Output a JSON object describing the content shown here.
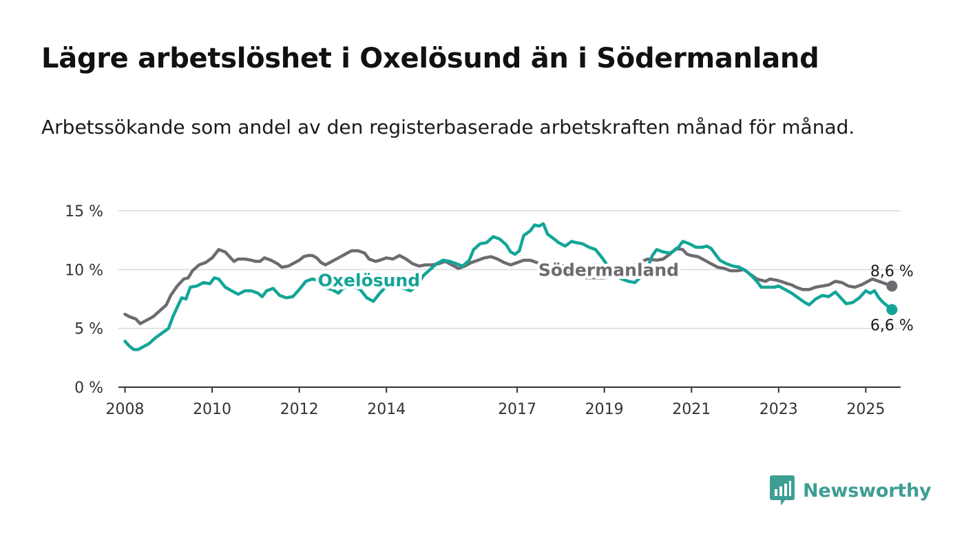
{
  "title": "Lägre arbetslöshet i Oxelösund än i Södermanland",
  "subtitle": "Arbetssökande som andel av den registerbaserade arbetskraften månad för månad.",
  "brand": {
    "name": "Newsworthy",
    "icon": "newsworthy-logo-icon",
    "color": "#3e9e94"
  },
  "chart_data": {
    "type": "line",
    "title": "",
    "xlabel": "",
    "ylabel": "",
    "xlim": [
      2007.85,
      2025.8
    ],
    "ylim": [
      0,
      15
    ],
    "grid": true,
    "x_ticks": [
      2008,
      2010,
      2012,
      2014,
      2017,
      2019,
      2021,
      2023,
      2025
    ],
    "x_tick_labels": [
      "2008",
      "2010",
      "2012",
      "2014",
      "2017",
      "2019",
      "2021",
      "2023",
      "2025"
    ],
    "y_ticks": [
      0,
      5,
      10,
      15
    ],
    "y_tick_labels": [
      "0 %",
      "5 %",
      "10 %",
      "15 %"
    ],
    "series": [
      {
        "name": "Södermanland",
        "color": "#6e6b70",
        "end_label": "8,6 %",
        "points": [
          [
            2008.0,
            6.2
          ],
          [
            2008.1,
            6.0
          ],
          [
            2008.25,
            5.8
          ],
          [
            2008.35,
            5.4
          ],
          [
            2008.5,
            5.7
          ],
          [
            2008.65,
            6.0
          ],
          [
            2008.8,
            6.5
          ],
          [
            2008.95,
            7.0
          ],
          [
            2009.05,
            7.8
          ],
          [
            2009.2,
            8.6
          ],
          [
            2009.35,
            9.2
          ],
          [
            2009.45,
            9.3
          ],
          [
            2009.55,
            9.9
          ],
          [
            2009.7,
            10.4
          ],
          [
            2009.85,
            10.6
          ],
          [
            2010.0,
            11.0
          ],
          [
            2010.15,
            11.7
          ],
          [
            2010.3,
            11.5
          ],
          [
            2010.4,
            11.1
          ],
          [
            2010.5,
            10.7
          ],
          [
            2010.6,
            10.9
          ],
          [
            2010.75,
            10.9
          ],
          [
            2010.9,
            10.8
          ],
          [
            2011.0,
            10.7
          ],
          [
            2011.1,
            10.7
          ],
          [
            2011.2,
            11.0
          ],
          [
            2011.35,
            10.8
          ],
          [
            2011.5,
            10.5
          ],
          [
            2011.6,
            10.2
          ],
          [
            2011.75,
            10.3
          ],
          [
            2011.9,
            10.6
          ],
          [
            2012.0,
            10.8
          ],
          [
            2012.1,
            11.1
          ],
          [
            2012.2,
            11.2
          ],
          [
            2012.3,
            11.2
          ],
          [
            2012.4,
            11.0
          ],
          [
            2012.5,
            10.6
          ],
          [
            2012.6,
            10.4
          ],
          [
            2012.75,
            10.7
          ],
          [
            2012.9,
            11.0
          ],
          [
            2013.0,
            11.2
          ],
          [
            2013.1,
            11.4
          ],
          [
            2013.2,
            11.6
          ],
          [
            2013.35,
            11.6
          ],
          [
            2013.5,
            11.4
          ],
          [
            2013.6,
            10.9
          ],
          [
            2013.75,
            10.7
          ],
          [
            2013.85,
            10.8
          ],
          [
            2014.0,
            11.0
          ],
          [
            2014.15,
            10.9
          ],
          [
            2014.3,
            11.2
          ],
          [
            2014.45,
            10.9
          ],
          [
            2014.6,
            10.5
          ],
          [
            2014.75,
            10.3
          ],
          [
            2014.9,
            10.4
          ],
          [
            2015.05,
            10.4
          ],
          [
            2015.2,
            10.5
          ],
          [
            2015.35,
            10.7
          ],
          [
            2015.5,
            10.4
          ],
          [
            2015.65,
            10.1
          ],
          [
            2015.8,
            10.3
          ],
          [
            2015.95,
            10.6
          ],
          [
            2016.1,
            10.8
          ],
          [
            2016.25,
            11.0
          ],
          [
            2016.4,
            11.1
          ],
          [
            2016.55,
            10.9
          ],
          [
            2016.7,
            10.6
          ],
          [
            2016.85,
            10.4
          ],
          [
            2017.0,
            10.6
          ],
          [
            2017.15,
            10.8
          ],
          [
            2017.3,
            10.8
          ],
          [
            2017.45,
            10.6
          ],
          [
            2017.6,
            10.3
          ],
          [
            2017.75,
            10.3
          ],
          [
            2017.9,
            10.4
          ],
          [
            2018.0,
            10.4
          ],
          [
            2018.1,
            10.3
          ],
          [
            2018.2,
            9.9
          ],
          [
            2018.4,
            9.6
          ],
          [
            2018.6,
            9.3
          ],
          [
            2018.8,
            9.3
          ],
          [
            2019.0,
            9.3
          ],
          [
            2019.2,
            9.4
          ],
          [
            2019.4,
            9.8
          ],
          [
            2019.6,
            10.1
          ],
          [
            2019.8,
            10.6
          ],
          [
            2020.0,
            10.9
          ],
          [
            2020.2,
            10.8
          ],
          [
            2020.35,
            10.9
          ],
          [
            2020.5,
            11.3
          ],
          [
            2020.65,
            11.8
          ],
          [
            2020.8,
            11.7
          ],
          [
            2020.9,
            11.3
          ],
          [
            2021.0,
            11.2
          ],
          [
            2021.15,
            11.1
          ],
          [
            2021.3,
            10.8
          ],
          [
            2021.45,
            10.5
          ],
          [
            2021.6,
            10.2
          ],
          [
            2021.75,
            10.1
          ],
          [
            2021.9,
            9.9
          ],
          [
            2022.05,
            9.9
          ],
          [
            2022.2,
            10.0
          ],
          [
            2022.35,
            9.6
          ],
          [
            2022.5,
            9.2
          ],
          [
            2022.7,
            9.0
          ],
          [
            2022.8,
            9.2
          ],
          [
            2022.95,
            9.1
          ],
          [
            2023.05,
            9.0
          ],
          [
            2023.2,
            8.8
          ],
          [
            2023.3,
            8.7
          ],
          [
            2023.4,
            8.5
          ],
          [
            2023.55,
            8.3
          ],
          [
            2023.7,
            8.3
          ],
          [
            2023.85,
            8.5
          ],
          [
            2024.0,
            8.6
          ],
          [
            2024.15,
            8.7
          ],
          [
            2024.3,
            9.0
          ],
          [
            2024.45,
            8.9
          ],
          [
            2024.6,
            8.6
          ],
          [
            2024.75,
            8.5
          ],
          [
            2024.9,
            8.7
          ],
          [
            2025.05,
            9.0
          ],
          [
            2025.15,
            9.2
          ],
          [
            2025.3,
            9.0
          ],
          [
            2025.45,
            8.8
          ],
          [
            2025.6,
            8.6
          ]
        ]
      },
      {
        "name": "Oxelösund",
        "color": "#12a597",
        "end_label": "6,6 %",
        "points": [
          [
            2008.0,
            3.9
          ],
          [
            2008.1,
            3.5
          ],
          [
            2008.2,
            3.2
          ],
          [
            2008.3,
            3.2
          ],
          [
            2008.4,
            3.4
          ],
          [
            2008.55,
            3.7
          ],
          [
            2008.7,
            4.2
          ],
          [
            2008.85,
            4.6
          ],
          [
            2009.0,
            5.0
          ],
          [
            2009.1,
            6.0
          ],
          [
            2009.2,
            6.8
          ],
          [
            2009.3,
            7.6
          ],
          [
            2009.4,
            7.5
          ],
          [
            2009.5,
            8.5
          ],
          [
            2009.65,
            8.6
          ],
          [
            2009.8,
            8.9
          ],
          [
            2009.95,
            8.8
          ],
          [
            2010.05,
            9.3
          ],
          [
            2010.15,
            9.2
          ],
          [
            2010.3,
            8.5
          ],
          [
            2010.45,
            8.2
          ],
          [
            2010.6,
            7.9
          ],
          [
            2010.75,
            8.2
          ],
          [
            2010.9,
            8.2
          ],
          [
            2011.05,
            8.0
          ],
          [
            2011.15,
            7.7
          ],
          [
            2011.25,
            8.2
          ],
          [
            2011.4,
            8.4
          ],
          [
            2011.55,
            7.8
          ],
          [
            2011.7,
            7.6
          ],
          [
            2011.85,
            7.7
          ],
          [
            2012.0,
            8.3
          ],
          [
            2012.15,
            9.0
          ],
          [
            2012.3,
            9.2
          ],
          [
            2012.4,
            9.1
          ],
          [
            2012.5,
            8.6
          ],
          [
            2012.65,
            8.4
          ],
          [
            2012.75,
            8.3
          ],
          [
            2012.9,
            8.0
          ],
          [
            2013.0,
            8.4
          ],
          [
            2013.2,
            8.6
          ],
          [
            2013.4,
            8.3
          ],
          [
            2013.55,
            7.6
          ],
          [
            2013.7,
            7.3
          ],
          [
            2013.85,
            8.0
          ],
          [
            2014.0,
            8.6
          ],
          [
            2014.2,
            8.6
          ],
          [
            2014.4,
            8.4
          ],
          [
            2014.55,
            8.2
          ],
          [
            2014.7,
            8.6
          ],
          [
            2014.85,
            9.5
          ],
          [
            2015.0,
            10.0
          ],
          [
            2015.15,
            10.5
          ],
          [
            2015.3,
            10.8
          ],
          [
            2015.45,
            10.7
          ],
          [
            2015.6,
            10.5
          ],
          [
            2015.75,
            10.3
          ],
          [
            2015.9,
            10.8
          ],
          [
            2016.0,
            11.7
          ],
          [
            2016.15,
            12.2
          ],
          [
            2016.3,
            12.3
          ],
          [
            2016.45,
            12.8
          ],
          [
            2016.6,
            12.6
          ],
          [
            2016.75,
            12.1
          ],
          [
            2016.85,
            11.5
          ],
          [
            2016.95,
            11.3
          ],
          [
            2017.05,
            11.6
          ],
          [
            2017.15,
            12.9
          ],
          [
            2017.3,
            13.3
          ],
          [
            2017.4,
            13.8
          ],
          [
            2017.5,
            13.7
          ],
          [
            2017.6,
            13.9
          ],
          [
            2017.7,
            13.0
          ],
          [
            2017.85,
            12.6
          ],
          [
            2017.95,
            12.3
          ],
          [
            2018.1,
            12.0
          ],
          [
            2018.25,
            12.4
          ],
          [
            2018.35,
            12.3
          ],
          [
            2018.5,
            12.2
          ],
          [
            2018.65,
            11.9
          ],
          [
            2018.8,
            11.7
          ],
          [
            2018.95,
            11.0
          ],
          [
            2019.1,
            10.2
          ],
          [
            2019.25,
            9.5
          ],
          [
            2019.4,
            9.2
          ],
          [
            2019.55,
            9.0
          ],
          [
            2019.7,
            8.9
          ],
          [
            2019.85,
            9.4
          ],
          [
            2020.0,
            10.2
          ],
          [
            2020.1,
            11.2
          ],
          [
            2020.2,
            11.7
          ],
          [
            2020.35,
            11.5
          ],
          [
            2020.5,
            11.4
          ],
          [
            2020.6,
            11.6
          ],
          [
            2020.7,
            11.9
          ],
          [
            2020.8,
            12.4
          ],
          [
            2020.95,
            12.2
          ],
          [
            2021.1,
            11.9
          ],
          [
            2021.25,
            11.9
          ],
          [
            2021.35,
            12.0
          ],
          [
            2021.45,
            11.8
          ],
          [
            2021.55,
            11.3
          ],
          [
            2021.65,
            10.8
          ],
          [
            2021.8,
            10.5
          ],
          [
            2021.95,
            10.3
          ],
          [
            2022.1,
            10.2
          ],
          [
            2022.25,
            9.9
          ],
          [
            2022.4,
            9.4
          ],
          [
            2022.5,
            9.0
          ],
          [
            2022.6,
            8.5
          ],
          [
            2022.75,
            8.5
          ],
          [
            2022.9,
            8.5
          ],
          [
            2023.0,
            8.6
          ],
          [
            2023.15,
            8.3
          ],
          [
            2023.3,
            8.0
          ],
          [
            2023.45,
            7.6
          ],
          [
            2023.6,
            7.2
          ],
          [
            2023.7,
            7.0
          ],
          [
            2023.85,
            7.5
          ],
          [
            2024.0,
            7.8
          ],
          [
            2024.15,
            7.7
          ],
          [
            2024.3,
            8.1
          ],
          [
            2024.45,
            7.5
          ],
          [
            2024.55,
            7.1
          ],
          [
            2024.7,
            7.2
          ],
          [
            2024.85,
            7.6
          ],
          [
            2025.0,
            8.2
          ],
          [
            2025.1,
            8.0
          ],
          [
            2025.2,
            8.2
          ],
          [
            2025.3,
            7.6
          ],
          [
            2025.4,
            7.2
          ],
          [
            2025.5,
            6.9
          ],
          [
            2025.6,
            6.6
          ]
        ]
      }
    ],
    "series_labels": [
      {
        "name": "Oxelösund",
        "x": 2013.6,
        "y": 9.1,
        "color": "#12a597"
      },
      {
        "name": "Södermanland",
        "x": 2019.1,
        "y": 10.0,
        "color": "#6e6b70"
      }
    ],
    "end_labels": [
      {
        "text": "8,6 %",
        "x": 2025.6,
        "y": 8.6,
        "placement": "above"
      },
      {
        "text": "6,6 %",
        "x": 2025.6,
        "y": 6.6,
        "placement": "below"
      }
    ]
  }
}
